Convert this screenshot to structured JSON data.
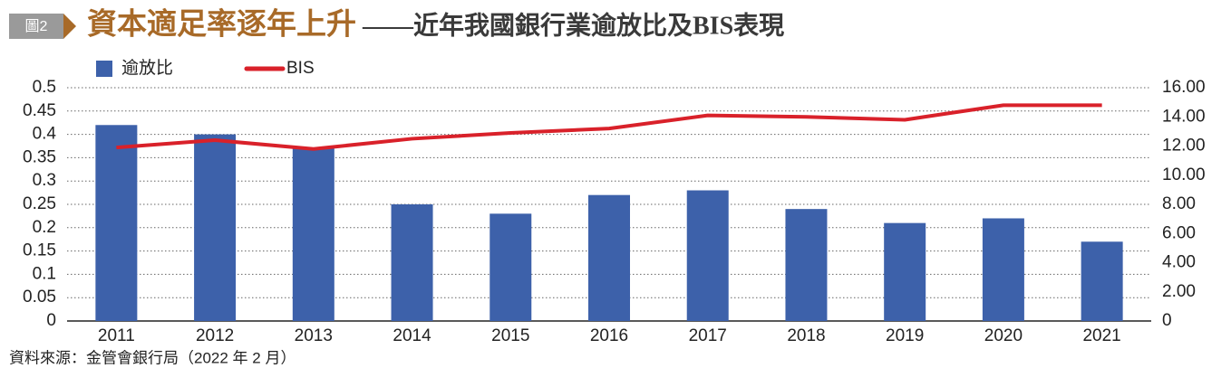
{
  "figure_label": "圖2",
  "chart_data": {
    "type": "bar",
    "title": "資本適足率逐年上升",
    "subtitle": "——近年我國銀行業逾放比及BIS表現",
    "source": "資料來源：金管會銀行局（2022 年 2 月）",
    "categories": [
      "2011",
      "2012",
      "2013",
      "2014",
      "2015",
      "2016",
      "2017",
      "2018",
      "2019",
      "2020",
      "2021"
    ],
    "series": [
      {
        "name": "逾放比",
        "type": "bar",
        "color": "#3d61aa",
        "values": [
          0.42,
          0.4,
          0.37,
          0.25,
          0.23,
          0.27,
          0.28,
          0.24,
          0.21,
          0.22,
          0.17
        ]
      },
      {
        "name": "BIS",
        "type": "line",
        "axis": "y2",
        "color": "#d9212a",
        "values": [
          11.9,
          12.4,
          11.8,
          12.5,
          12.9,
          13.2,
          14.1,
          14.0,
          13.8,
          14.8,
          14.8
        ]
      }
    ],
    "ylim": [
      0,
      0.5
    ],
    "yticks": [
      0,
      0.05,
      0.1,
      0.15,
      0.2,
      0.25,
      0.3,
      0.35,
      0.4,
      0.45,
      0.5
    ],
    "y2lim": [
      0,
      16
    ],
    "y2ticks": [
      0,
      {
        "value": 2,
        "label": "2.00"
      },
      {
        "value": 4,
        "label": "4.00"
      },
      {
        "value": 6,
        "label": "6.00"
      },
      {
        "value": 8,
        "label": "8.00"
      },
      {
        "value": 10,
        "label": "10.00"
      },
      {
        "value": 12,
        "label": "12.00"
      },
      {
        "value": 14,
        "label": "14.00"
      },
      {
        "value": 16,
        "label": "16.00"
      }
    ],
    "grid": true
  }
}
